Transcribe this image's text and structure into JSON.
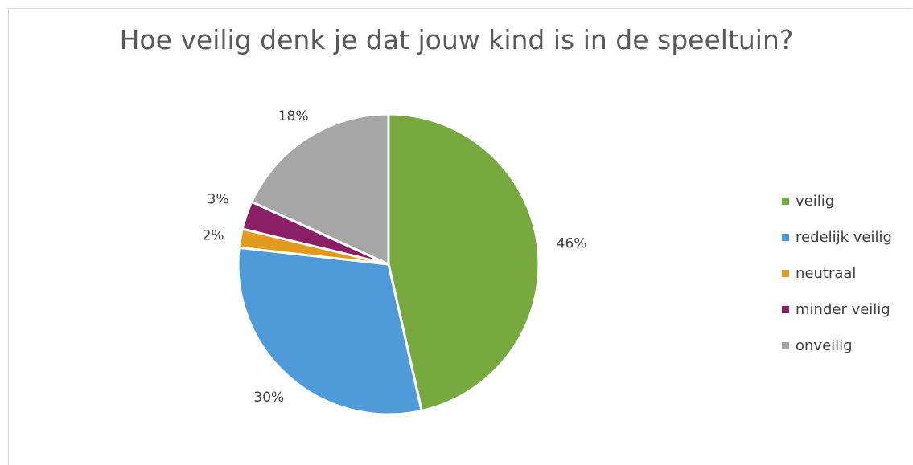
{
  "chart_data": {
    "type": "pie",
    "title": "Hoe veilig denk je dat jouw kind is in de speeltuin?",
    "categories": [
      "veilig",
      "redelijk veilig",
      "neutraal",
      "minder veilig",
      "onveilig"
    ],
    "values": [
      46,
      30,
      2,
      3,
      18
    ],
    "value_labels": [
      "46%",
      "30%",
      "2%",
      "3%",
      "18%"
    ],
    "colors": [
      "#77a93e",
      "#4f9ad8",
      "#e19c1f",
      "#8b1f65",
      "#a6a6a6"
    ],
    "legend_position": "right"
  }
}
